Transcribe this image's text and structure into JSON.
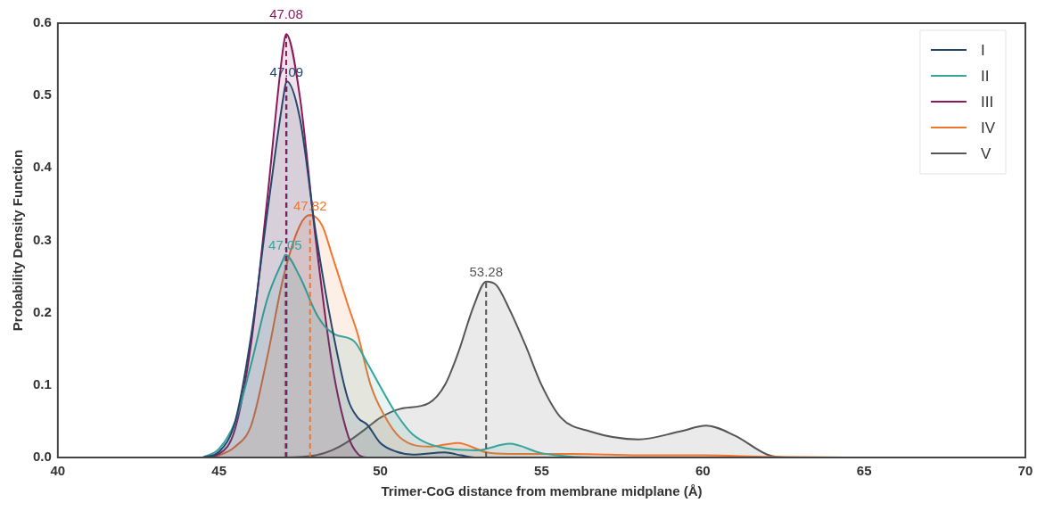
{
  "chart_data": {
    "type": "area",
    "xlabel": "Trimer-CoG distance from membrane midplane (Å)",
    "ylabel": "Probability Density Function",
    "xlim": [
      40,
      70
    ],
    "xticks": [
      40,
      45,
      50,
      55,
      60,
      65,
      70
    ],
    "ylim": [
      0,
      0.6
    ],
    "yticks": [
      {
        "value": 0,
        "label": "0.0"
      },
      0.1,
      0.2,
      0.3,
      0.4,
      0.5,
      0.6
    ],
    "grid": false,
    "legend": "top right",
    "series": [
      {
        "name": "I",
        "color": "#24476b",
        "x": [
          44.5,
          45,
          45.5,
          46,
          46.5,
          47,
          47.09,
          47.5,
          48,
          48.5,
          49,
          49.3,
          49.6,
          50,
          50.5,
          51,
          52,
          52.5,
          53,
          70
        ],
        "values": [
          0,
          0.008,
          0.05,
          0.17,
          0.34,
          0.5,
          0.52,
          0.47,
          0.31,
          0.18,
          0.08,
          0.055,
          0.045,
          0.02,
          0.008,
          0.004,
          0.007,
          0.003,
          0,
          0
        ]
      },
      {
        "name": "II",
        "color": "#35a59b",
        "x": [
          44.5,
          45,
          45.5,
          46,
          46.5,
          47,
          47.05,
          47.5,
          48,
          48.3,
          48.6,
          49.2,
          49.6,
          50.1,
          50.5,
          51,
          52,
          53,
          54,
          55,
          56,
          57,
          70
        ],
        "values": [
          0,
          0.012,
          0.05,
          0.13,
          0.22,
          0.275,
          0.28,
          0.25,
          0.2,
          0.18,
          0.17,
          0.16,
          0.13,
          0.09,
          0.06,
          0.032,
          0.013,
          0.01,
          0.019,
          0.006,
          0.001,
          0,
          0
        ]
      },
      {
        "name": "III",
        "color": "#8b1a5a",
        "x": [
          44.5,
          45,
          45.5,
          46,
          46.5,
          47,
          47.08,
          47.5,
          48,
          48.5,
          49,
          49.3,
          49.6,
          70
        ],
        "values": [
          0,
          0.005,
          0.04,
          0.16,
          0.36,
          0.57,
          0.585,
          0.5,
          0.3,
          0.13,
          0.03,
          0.005,
          0,
          0
        ]
      },
      {
        "name": "IV",
        "color": "#f07530",
        "x": [
          44.5,
          45,
          45.5,
          46,
          46.5,
          47,
          47.5,
          47.82,
          48.2,
          48.5,
          49,
          49.3,
          49.7,
          50.1,
          50.6,
          51.5,
          52.4,
          53.3,
          54,
          56,
          58,
          60,
          62,
          65,
          70
        ],
        "values": [
          0,
          0.003,
          0.015,
          0.045,
          0.14,
          0.25,
          0.32,
          0.335,
          0.32,
          0.28,
          0.21,
          0.17,
          0.1,
          0.06,
          0.028,
          0.015,
          0.02,
          0.007,
          0.005,
          0.005,
          0.003,
          0.003,
          0.001,
          0,
          0
        ]
      },
      {
        "name": "V",
        "color": "#555555",
        "x": [
          44.5,
          47,
          48,
          48.5,
          49,
          49.5,
          50,
          50.6,
          51.5,
          52,
          52.4,
          52.9,
          53.28,
          53.6,
          54,
          54.5,
          55,
          55.6,
          56.5,
          58,
          59.3,
          60.1,
          61,
          62,
          62.6,
          70
        ],
        "values": [
          0,
          0,
          0.003,
          0.01,
          0.022,
          0.038,
          0.055,
          0.067,
          0.075,
          0.1,
          0.143,
          0.21,
          0.243,
          0.238,
          0.205,
          0.155,
          0.1,
          0.055,
          0.036,
          0.025,
          0.036,
          0.044,
          0.03,
          0.004,
          0,
          0
        ]
      }
    ],
    "ref_lines": [
      {
        "axis": "x",
        "value": 47.09,
        "label": "47.09",
        "color": "#24476b",
        "line_style": "dashed"
      },
      {
        "axis": "x",
        "value": 47.05,
        "label": "47.05",
        "color": "#35a59b",
        "line_style": "dashed"
      },
      {
        "axis": "x",
        "value": 47.08,
        "label": "47.08",
        "color": "#8b1a5a",
        "line_style": "dashed"
      },
      {
        "axis": "x",
        "value": 47.82,
        "label": "47.82",
        "color": "#f07530",
        "line_style": "dashed"
      },
      {
        "axis": "x",
        "value": 53.28,
        "label": "53.28",
        "color": "#555555",
        "line_style": "dashed"
      }
    ]
  }
}
